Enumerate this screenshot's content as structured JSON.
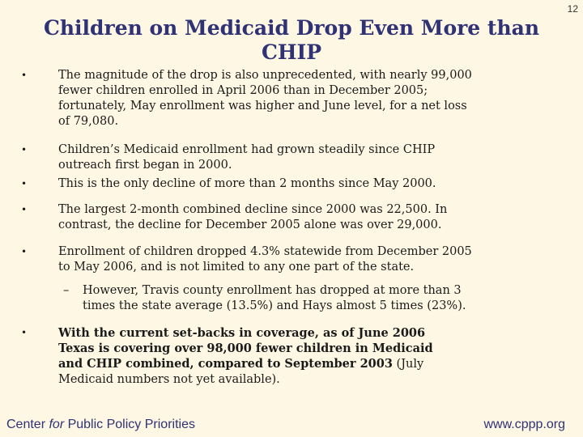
{
  "slide_number": "12",
  "title": {
    "line1": "Children on Medicaid Drop Even More than",
    "line2": "CHIP"
  },
  "bullets": [
    {
      "lines": [
        "The magnitude of the drop is also unprecedented, with nearly 99,000",
        "fewer children enrolled in April 2006 than in December 2005;",
        "fortunately, May enrollment was higher and June level, for a net loss",
        "of 79,080."
      ]
    },
    {
      "lines": [
        "Children’s Medicaid enrollment had grown steadily since CHIP",
        "outreach first began in 2000."
      ]
    },
    {
      "lines": [
        "This is the only decline of more than 2 months since May 2000."
      ]
    },
    {
      "lines": [
        "The largest 2-month combined decline since 2000 was 22,500.  In",
        "contrast, the decline for December 2005 alone was over 29,000."
      ]
    },
    {
      "lines": [
        "Enrollment of children dropped 4.3% statewide from December 2005",
        "to May 2006, and is not limited to any one part of the state."
      ]
    },
    {
      "lines": [
        "However, Travis county enrollment has dropped at more than 3",
        "times the state average (13.5%) and Hays almost 5 times (23%)."
      ]
    },
    {
      "bold_lines": [
        "With the current set-backs in coverage, as of June 2006",
        "Texas is covering over 98,000 fewer children in Medicaid",
        "and CHIP combined, compared to September 2003"
      ],
      "normal_tail": " (July",
      "tail_lines": [
        "Medicaid numbers not yet available)."
      ]
    }
  ],
  "footer": {
    "left_pre": "Center ",
    "left_em": "for",
    "left_post": " Public Policy Priorities",
    "right": "www.cppp.org"
  },
  "colors": {
    "background": "#fdf7e3",
    "title": "#2f3275",
    "footer": "#2f3275"
  },
  "icons": {
    "bullet": "bullet-dot",
    "sub_bullet": "dash"
  }
}
